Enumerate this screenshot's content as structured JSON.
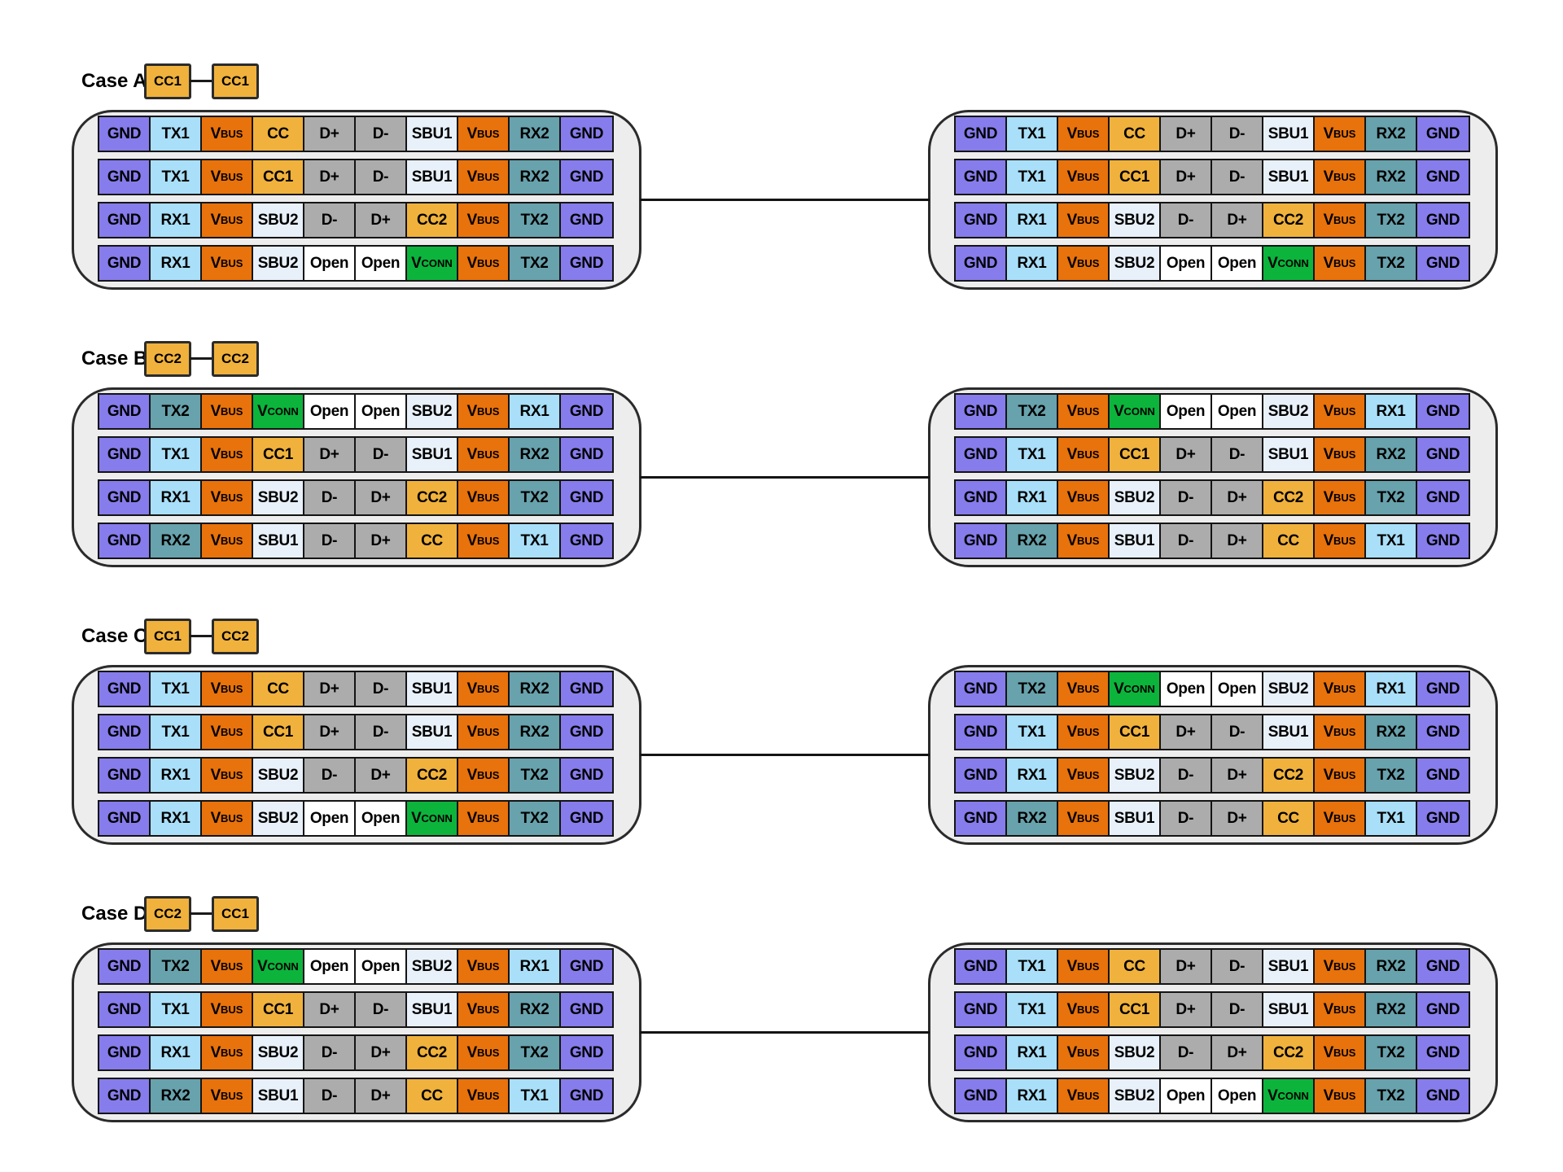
{
  "palette": {
    "background": "#FFFFFF",
    "connector_body_fill": "#EDEDED",
    "connector_body_border": "#2B2B2B",
    "cell_border": "#141414",
    "cable_line": "#141414",
    "plug_fill": "#F0B23C",
    "plug_border": "#2B2B2B",
    "text": "#000000"
  },
  "pin_colors": {
    "GND": "#867CEB",
    "TX1": "#A9DFF8",
    "RX1": "#A9DFF8",
    "TX2": "#68A2AC",
    "RX2": "#68A2AC",
    "VBUS": "#E8720B",
    "CC": "#F0B23C",
    "CC1": "#F0B23C",
    "CC2": "#F0B23C",
    "D+": "#ACACAC",
    "D-": "#ACACAC",
    "SBU1": "#E8F0F9",
    "SBU2": "#E8F0F9",
    "Open": "#FFFFFF",
    "VCONN": "#0CB43C"
  },
  "patterns": {
    "A": [
      [
        "GND",
        "TX1",
        "VBUS",
        "CC",
        "D+",
        "D-",
        "SBU1",
        "VBUS",
        "RX2",
        "GND"
      ],
      [
        "GND",
        "TX1",
        "VBUS",
        "CC1",
        "D+",
        "D-",
        "SBU1",
        "VBUS",
        "RX2",
        "GND"
      ],
      [
        "GND",
        "RX1",
        "VBUS",
        "SBU2",
        "D-",
        "D+",
        "CC2",
        "VBUS",
        "TX2",
        "GND"
      ],
      [
        "GND",
        "RX1",
        "VBUS",
        "SBU2",
        "Open",
        "Open",
        "VCONN",
        "VBUS",
        "TX2",
        "GND"
      ]
    ],
    "B": [
      [
        "GND",
        "TX2",
        "VBUS",
        "VCONN",
        "Open",
        "Open",
        "SBU2",
        "VBUS",
        "RX1",
        "GND"
      ],
      [
        "GND",
        "TX1",
        "VBUS",
        "CC1",
        "D+",
        "D-",
        "SBU1",
        "VBUS",
        "RX2",
        "GND"
      ],
      [
        "GND",
        "RX1",
        "VBUS",
        "SBU2",
        "D-",
        "D+",
        "CC2",
        "VBUS",
        "TX2",
        "GND"
      ],
      [
        "GND",
        "RX2",
        "VBUS",
        "SBU1",
        "D-",
        "D+",
        "CC",
        "VBUS",
        "TX1",
        "GND"
      ]
    ]
  },
  "cases": [
    {
      "label": "Case A:",
      "plug_left": "CC1",
      "plug_right": "CC1",
      "left_pattern": "A",
      "right_pattern": "A"
    },
    {
      "label": "Case B:",
      "plug_left": "CC2",
      "plug_right": "CC2",
      "left_pattern": "B",
      "right_pattern": "B"
    },
    {
      "label": "Case C:",
      "plug_left": "CC1",
      "plug_right": "CC2",
      "left_pattern": "A",
      "right_pattern": "B"
    },
    {
      "label": "Case D:",
      "plug_left": "CC2",
      "plug_right": "CC1",
      "left_pattern": "B",
      "right_pattern": "A"
    }
  ]
}
